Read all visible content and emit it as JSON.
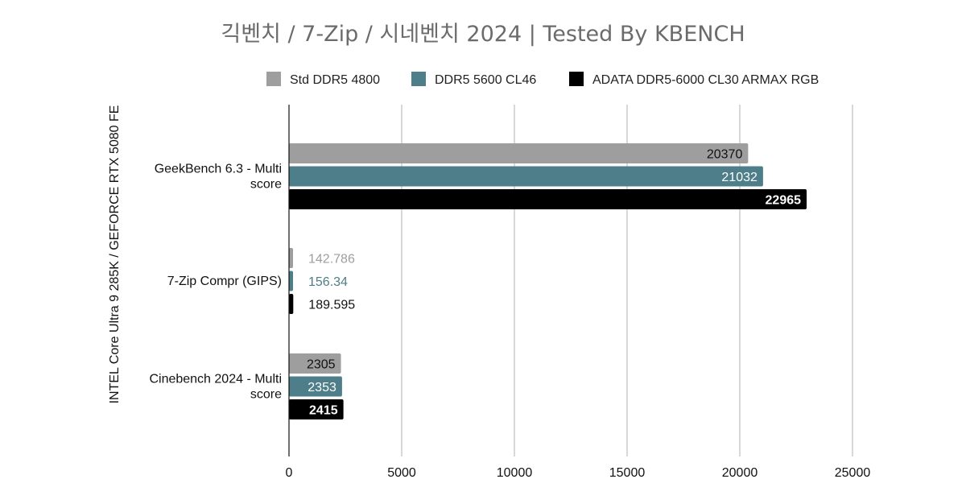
{
  "chart_data": {
    "type": "bar",
    "orientation": "horizontal",
    "title": "긱벤치 / 7-Zip / 시네벤치 2024 | Tested By KBENCH",
    "ylabel": "INTEL Core Ultra 9 285K / GEFORCE RTX 5080 FE",
    "xlabel": "",
    "xlim": [
      0,
      25000
    ],
    "xticks": [
      0,
      5000,
      10000,
      15000,
      20000,
      25000
    ],
    "grid": "vertical",
    "legend_position": "top",
    "categories": [
      [
        "GeekBench 6.3 - Multi",
        "score"
      ],
      [
        "7-Zip Compr (GIPS)"
      ],
      [
        "Cinebench 2024 - Multi",
        "score"
      ]
    ],
    "series": [
      {
        "name": "Std DDR5 4800",
        "color": "#9e9e9e",
        "label_color": "#111111",
        "values": [
          20370,
          142.786,
          2305
        ],
        "labels": [
          "20370",
          "142.786",
          "2305"
        ]
      },
      {
        "name": "DDR5 5600 CL46",
        "color": "#4e7e89",
        "label_color": "#ffffff",
        "values": [
          21032,
          156.34,
          2353
        ],
        "labels": [
          "21032",
          "156.34",
          "2353"
        ]
      },
      {
        "name": "ADATA DDR5-6000 CL30 ARMAX RGB",
        "color": "#000000",
        "label_color": "#ffffff",
        "values": [
          22965,
          189.595,
          2415
        ],
        "labels": [
          "22965",
          "189.595",
          "2415"
        ]
      }
    ]
  }
}
